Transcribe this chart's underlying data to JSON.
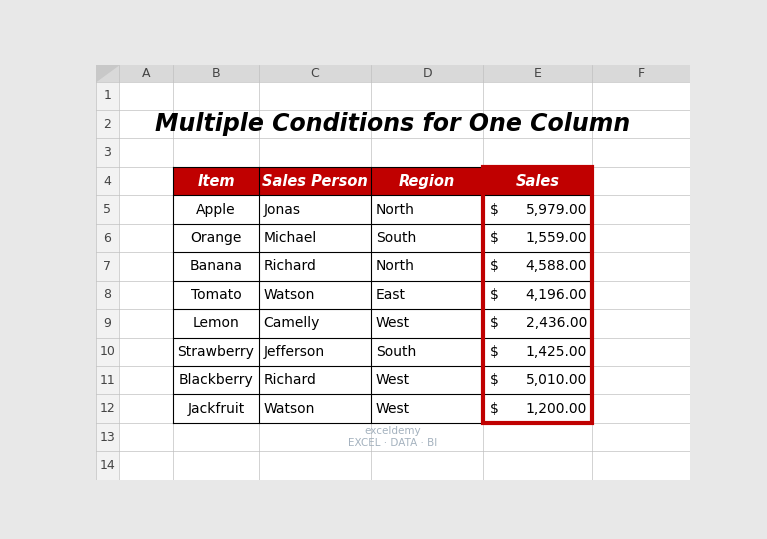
{
  "title": "Multiple Conditions for One Column",
  "columns": [
    "Item",
    "Sales Person",
    "Region",
    "Sales"
  ],
  "rows": [
    [
      "Apple",
      "Jonas",
      "North",
      "5,979.00"
    ],
    [
      "Orange",
      "Michael",
      "South",
      "1,559.00"
    ],
    [
      "Banana",
      "Richard",
      "North",
      "4,588.00"
    ],
    [
      "Tomato",
      "Watson",
      "East",
      "4,196.00"
    ],
    [
      "Lemon",
      "Camelly",
      "West",
      "2,436.00"
    ],
    [
      "Strawberry",
      "Jefferson",
      "South",
      "1,425.00"
    ],
    [
      "Blackberry",
      "Richard",
      "West",
      "5,010.00"
    ],
    [
      "Jackfruit",
      "Watson",
      "West",
      "1,200.00"
    ]
  ],
  "header_bg": "#C00000",
  "header_text_color": "#FFFFFF",
  "cell_bg": "#FFFFFF",
  "cell_text_color": "#000000",
  "highlight_border_color": "#C00000",
  "outer_bg": "#E8E8E8",
  "sheet_header_bg": "#D9D9D9",
  "row_num_bg": "#F2F2F2",
  "grid_color": "#C0C0C0",
  "col_letter_labels": [
    "A",
    "B",
    "C",
    "D",
    "E",
    "F"
  ],
  "title_fontsize": 17,
  "header_fontsize": 10.5,
  "cell_fontsize": 10,
  "watermark_text": "exceldemy\nEXCEL · DATA · BI"
}
